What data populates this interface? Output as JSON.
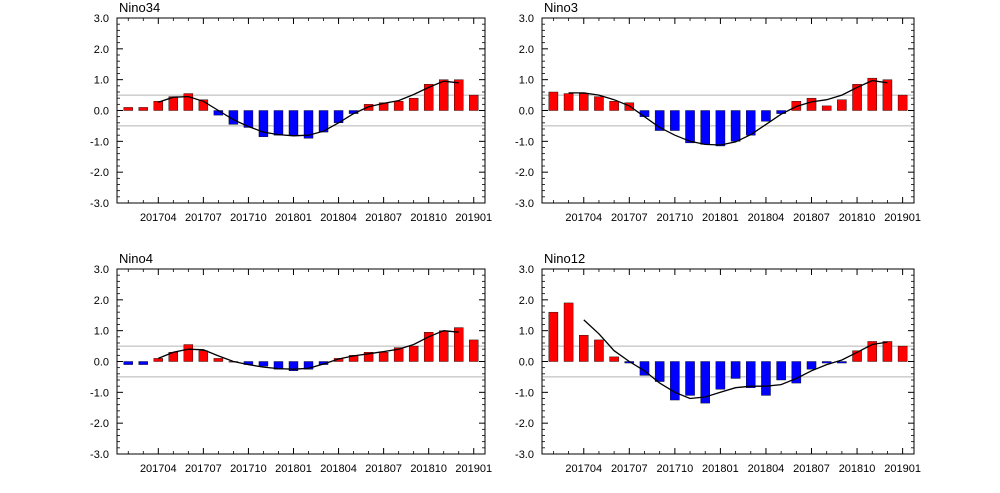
{
  "chart_data": [
    {
      "type": "bar",
      "title": "Nino34",
      "xlabel": "",
      "ylabel": "",
      "ylim": [
        -3,
        3
      ],
      "yticks": [
        "3.0",
        "2.0",
        "1.0",
        "0.0",
        "-1.0",
        "-2.0",
        "-3.0"
      ],
      "xticks": [
        "201704",
        "201707",
        "201710",
        "201801",
        "201804",
        "201807",
        "201810",
        "201901"
      ],
      "reference_lines": [
        0.5,
        -0.5
      ],
      "grid": false,
      "legend": "none",
      "values": [
        0.1,
        0.1,
        0.3,
        0.45,
        0.55,
        0.35,
        -0.15,
        -0.45,
        -0.55,
        -0.85,
        -0.8,
        -0.8,
        -0.9,
        -0.7,
        -0.4,
        -0.1,
        0.2,
        0.25,
        0.3,
        0.4,
        0.85,
        1.0,
        1.0,
        0.5
      ],
      "smoothed": [
        null,
        null,
        0.27,
        0.43,
        0.45,
        0.3,
        0.0,
        -0.3,
        -0.52,
        -0.7,
        -0.78,
        -0.82,
        -0.8,
        -0.67,
        -0.4,
        -0.1,
        0.12,
        0.23,
        0.32,
        0.52,
        0.75,
        0.95,
        0.9,
        null
      ]
    },
    {
      "type": "bar",
      "title": "Nino3",
      "xlabel": "",
      "ylabel": "",
      "ylim": [
        -3,
        3
      ],
      "yticks": [
        "3.0",
        "2.0",
        "1.0",
        "0.0",
        "-1.0",
        "-2.0",
        "-3.0"
      ],
      "xticks": [
        "201704",
        "201707",
        "201710",
        "201801",
        "201804",
        "201807",
        "201810",
        "201901"
      ],
      "reference_lines": [
        0.5,
        -0.5
      ],
      "grid": false,
      "legend": "none",
      "values": [
        0.6,
        0.55,
        0.55,
        0.45,
        0.3,
        0.25,
        -0.2,
        -0.65,
        -0.65,
        -1.05,
        -1.1,
        -1.15,
        -1.0,
        -0.8,
        -0.35,
        -0.1,
        0.3,
        0.4,
        0.15,
        0.35,
        0.85,
        1.05,
        1.0,
        0.5
      ],
      "smoothed": [
        null,
        0.57,
        0.57,
        0.5,
        0.35,
        0.15,
        -0.2,
        -0.55,
        -0.8,
        -1.0,
        -1.1,
        -1.12,
        -1.02,
        -0.78,
        -0.45,
        -0.12,
        0.13,
        0.28,
        0.35,
        0.5,
        0.75,
        0.97,
        0.9,
        null
      ]
    },
    {
      "type": "bar",
      "title": "Nino4",
      "xlabel": "",
      "ylabel": "",
      "ylim": [
        -3,
        3
      ],
      "yticks": [
        "3.0",
        "2.0",
        "1.0",
        "0.0",
        "-1.0",
        "-2.0",
        "-3.0"
      ],
      "xticks": [
        "201704",
        "201707",
        "201710",
        "201801",
        "201804",
        "201807",
        "201810",
        "201901"
      ],
      "reference_lines": [
        0.5,
        -0.5
      ],
      "grid": false,
      "legend": "none",
      "values": [
        -0.1,
        -0.1,
        0.1,
        0.3,
        0.55,
        0.35,
        0.1,
        0.0,
        -0.1,
        -0.15,
        -0.25,
        -0.3,
        -0.25,
        -0.1,
        0.1,
        0.2,
        0.3,
        0.3,
        0.45,
        0.5,
        0.95,
        1.0,
        1.1,
        0.7
      ],
      "smoothed": [
        null,
        null,
        0.1,
        0.3,
        0.4,
        0.38,
        0.18,
        0.0,
        -0.1,
        -0.18,
        -0.23,
        -0.25,
        -0.22,
        -0.08,
        0.08,
        0.18,
        0.25,
        0.32,
        0.4,
        0.55,
        0.8,
        1.0,
        0.95,
        null
      ]
    },
    {
      "type": "bar",
      "title": "Nino12",
      "xlabel": "",
      "ylabel": "",
      "ylim": [
        -3,
        3
      ],
      "yticks": [
        "3.0",
        "2.0",
        "1.0",
        "0.0",
        "-1.0",
        "-2.0",
        "-3.0"
      ],
      "xticks": [
        "201704",
        "201707",
        "201710",
        "201801",
        "201804",
        "201807",
        "201810",
        "201901"
      ],
      "reference_lines": [
        0.5,
        -0.5
      ],
      "grid": false,
      "legend": "none",
      "values": [
        1.6,
        1.9,
        0.85,
        0.7,
        0.15,
        -0.05,
        -0.45,
        -0.65,
        -1.25,
        -1.1,
        -1.35,
        -0.9,
        -0.55,
        -0.85,
        -1.1,
        -0.6,
        -0.7,
        -0.25,
        -0.05,
        -0.05,
        0.35,
        0.65,
        0.65,
        0.5
      ],
      "smoothed": [
        null,
        null,
        1.35,
        0.9,
        0.35,
        0.0,
        -0.3,
        -0.7,
        -1.0,
        -1.2,
        -1.15,
        -1.0,
        -0.85,
        -0.8,
        -0.8,
        -0.75,
        -0.55,
        -0.3,
        -0.1,
        0.05,
        0.3,
        0.55,
        0.63,
        null
      ]
    }
  ]
}
